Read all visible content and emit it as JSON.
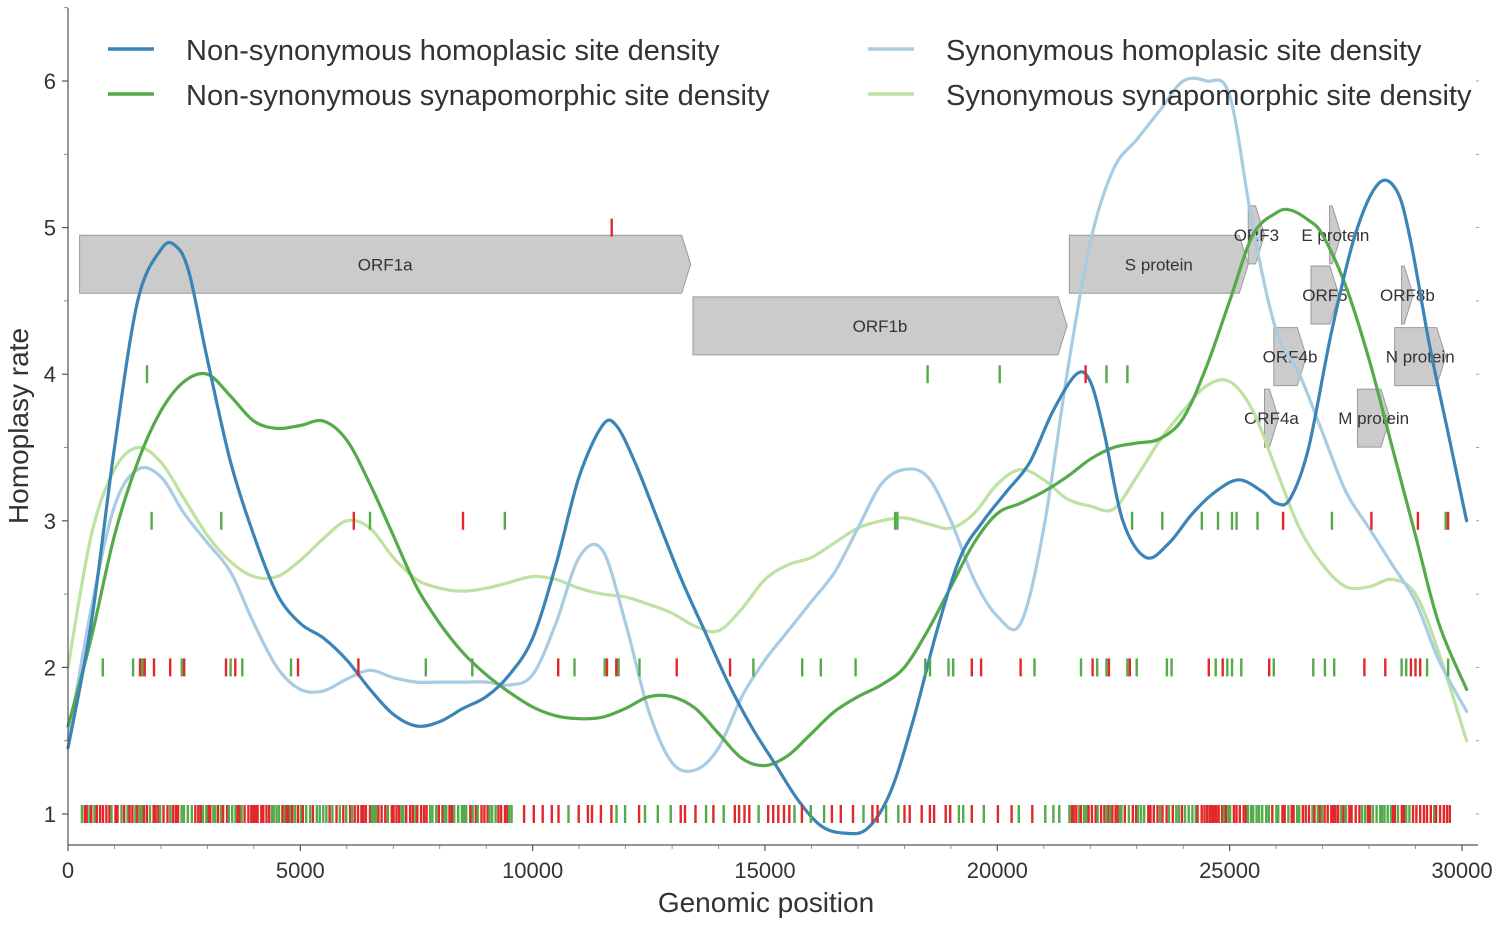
{
  "chart_data": {
    "type": "line",
    "xlabel": "Genomic position",
    "ylabel": "Homoplasy rate",
    "xlim": [
      0,
      30100
    ],
    "ylim": [
      0.8,
      6.5
    ],
    "xticks": [
      0,
      5000,
      10000,
      15000,
      20000,
      25000,
      30000
    ],
    "xtick_labels": [
      "0",
      "5000",
      "10000",
      "15000",
      "20000",
      "25000",
      "30000"
    ],
    "yticks": [
      1,
      2,
      3,
      4,
      5,
      6
    ],
    "ytick_labels": [
      "1",
      "2",
      "3",
      "4",
      "5",
      "6"
    ],
    "series": [
      {
        "name": "Non-synonymous homoplasic site density",
        "color": "#3b84b6",
        "x": [
          0,
          500,
          1000,
          1500,
          2000,
          2300,
          2600,
          3000,
          3500,
          4000,
          4500,
          5000,
          5500,
          6000,
          6500,
          7000,
          7500,
          8000,
          8500,
          9000,
          9500,
          10000,
          10500,
          11000,
          11500,
          11800,
          12200,
          12700,
          13200,
          13700,
          14200,
          14700,
          15200,
          15700,
          16200,
          16700,
          17200,
          17700,
          18200,
          18700,
          19200,
          19700,
          20200,
          20700,
          21200,
          21700,
          22000,
          22300,
          22700,
          23200,
          23700,
          24200,
          24700,
          25200,
          25700,
          26000,
          26300,
          26700,
          27200,
          27700,
          28200,
          28600,
          28900,
          29300,
          29700,
          30100
        ],
        "y": [
          1.45,
          2.3,
          3.5,
          4.5,
          4.85,
          4.88,
          4.7,
          4.1,
          3.4,
          2.9,
          2.5,
          2.3,
          2.2,
          2.05,
          1.85,
          1.68,
          1.6,
          1.63,
          1.72,
          1.8,
          1.95,
          2.2,
          2.7,
          3.3,
          3.65,
          3.65,
          3.4,
          3.0,
          2.6,
          2.25,
          1.9,
          1.6,
          1.35,
          1.1,
          0.92,
          0.87,
          0.9,
          1.15,
          1.65,
          2.25,
          2.75,
          3.0,
          3.2,
          3.4,
          3.75,
          4.0,
          3.95,
          3.6,
          3.0,
          2.75,
          2.85,
          3.05,
          3.2,
          3.28,
          3.2,
          3.12,
          3.15,
          3.5,
          4.3,
          4.95,
          5.3,
          5.25,
          4.9,
          4.2,
          3.6,
          3.0
        ]
      },
      {
        "name": "Non-synonymous synapomorphic site density",
        "color": "#55aa4a",
        "x": [
          0,
          500,
          1000,
          1500,
          2000,
          2500,
          3000,
          3500,
          4000,
          4500,
          5000,
          5500,
          6000,
          6500,
          7000,
          7500,
          8000,
          8500,
          9000,
          9500,
          10000,
          10500,
          11000,
          11500,
          12000,
          12500,
          13000,
          13500,
          14000,
          14500,
          15000,
          15500,
          16000,
          16500,
          17000,
          17500,
          18000,
          18500,
          19000,
          19500,
          20000,
          20500,
          21000,
          21500,
          22000,
          22500,
          23000,
          23500,
          24000,
          24500,
          25000,
          25500,
          26000,
          26300,
          26700,
          27000,
          27500,
          28000,
          28500,
          29000,
          29500,
          30100
        ],
        "y": [
          1.6,
          2.2,
          2.9,
          3.4,
          3.75,
          3.95,
          4.0,
          3.85,
          3.68,
          3.63,
          3.65,
          3.68,
          3.55,
          3.25,
          2.9,
          2.55,
          2.3,
          2.1,
          1.95,
          1.83,
          1.73,
          1.67,
          1.65,
          1.66,
          1.72,
          1.8,
          1.8,
          1.72,
          1.55,
          1.38,
          1.33,
          1.4,
          1.55,
          1.7,
          1.8,
          1.88,
          2.0,
          2.25,
          2.55,
          2.85,
          3.05,
          3.12,
          3.2,
          3.3,
          3.42,
          3.5,
          3.53,
          3.56,
          3.7,
          4.05,
          4.5,
          4.95,
          5.1,
          5.12,
          5.05,
          4.95,
          4.6,
          4.1,
          3.5,
          2.9,
          2.3,
          1.85
        ]
      },
      {
        "name": "Synonymous homoplasic site density",
        "color": "#a9cce3",
        "x": [
          0,
          500,
          1000,
          1500,
          2000,
          2500,
          3000,
          3500,
          4000,
          4500,
          5000,
          5500,
          6000,
          6500,
          7000,
          7500,
          8000,
          8500,
          9000,
          9500,
          10000,
          10500,
          11000,
          11500,
          12000,
          12500,
          13000,
          13500,
          14000,
          14500,
          15000,
          15500,
          16000,
          16500,
          17000,
          17500,
          18000,
          18500,
          19000,
          19500,
          20000,
          20500,
          21000,
          21500,
          22000,
          22500,
          23000,
          23500,
          24000,
          24500,
          25000,
          25500,
          26000,
          26500,
          27000,
          27500,
          28000,
          28500,
          29000,
          29500,
          30100
        ],
        "y": [
          1.5,
          2.4,
          3.1,
          3.35,
          3.3,
          3.05,
          2.85,
          2.65,
          2.3,
          2.0,
          1.85,
          1.84,
          1.92,
          1.98,
          1.93,
          1.9,
          1.9,
          1.9,
          1.9,
          1.88,
          1.95,
          2.3,
          2.75,
          2.8,
          2.3,
          1.7,
          1.35,
          1.3,
          1.45,
          1.8,
          2.05,
          2.25,
          2.45,
          2.65,
          2.95,
          3.25,
          3.35,
          3.3,
          3.0,
          2.6,
          2.35,
          2.3,
          2.95,
          4.0,
          4.9,
          5.4,
          5.6,
          5.8,
          6.0,
          6.0,
          5.9,
          5.0,
          4.3,
          4.0,
          3.6,
          3.2,
          2.95,
          2.7,
          2.45,
          2.05,
          1.7
        ]
      },
      {
        "name": "Synonymous synapomorphic site density",
        "color": "#bde2a1",
        "x": [
          0,
          500,
          1000,
          1500,
          2000,
          2500,
          3000,
          3500,
          4000,
          4500,
          5000,
          5500,
          6000,
          6500,
          7000,
          7500,
          8000,
          8500,
          9000,
          9500,
          10000,
          10500,
          11000,
          11500,
          12000,
          12500,
          13000,
          13500,
          14000,
          14500,
          15000,
          15500,
          16000,
          16500,
          17000,
          17500,
          18000,
          18500,
          19000,
          19500,
          20000,
          20500,
          21000,
          21500,
          22000,
          22500,
          23000,
          23500,
          24000,
          24500,
          25000,
          25500,
          26000,
          26500,
          27000,
          27500,
          28000,
          28500,
          29000,
          29500,
          30100
        ],
        "y": [
          2.0,
          2.9,
          3.35,
          3.5,
          3.4,
          3.15,
          2.9,
          2.72,
          2.62,
          2.62,
          2.73,
          2.88,
          3.0,
          2.95,
          2.75,
          2.6,
          2.54,
          2.52,
          2.54,
          2.58,
          2.62,
          2.6,
          2.54,
          2.5,
          2.48,
          2.43,
          2.37,
          2.28,
          2.25,
          2.4,
          2.6,
          2.7,
          2.75,
          2.85,
          2.95,
          3.0,
          3.02,
          2.98,
          2.95,
          3.05,
          3.25,
          3.35,
          3.28,
          3.15,
          3.1,
          3.08,
          3.3,
          3.55,
          3.75,
          3.92,
          3.95,
          3.75,
          3.35,
          2.95,
          2.7,
          2.55,
          2.55,
          2.6,
          2.5,
          2.1,
          1.5
        ]
      }
    ],
    "legend": {
      "position": "top",
      "entries": [
        {
          "label": "Non-synonymous homoplasic site density",
          "color": "#3b84b6"
        },
        {
          "label": "Non-synonymous synapomorphic site density",
          "color": "#55aa4a"
        },
        {
          "label": "Synonymous homoplasic site density",
          "color": "#a9cce3"
        },
        {
          "label": "Synonymous synapomorphic site density",
          "color": "#bde2a1"
        }
      ]
    },
    "genes": [
      {
        "name": "ORF1a",
        "start": 250,
        "end": 13400,
        "row": 4.75
      },
      {
        "name": "ORF1b",
        "start": 13450,
        "end": 21500,
        "row": 4.33
      },
      {
        "name": "S protein",
        "start": 21550,
        "end": 25400,
        "row": 4.75
      },
      {
        "name": "ORF3",
        "start": 25400,
        "end": 25750,
        "row": 4.95
      },
      {
        "name": "E protein",
        "start": 27150,
        "end": 27400,
        "row": 4.95
      },
      {
        "name": "ORF5",
        "start": 26750,
        "end": 27350,
        "row": 4.54
      },
      {
        "name": "ORF8b",
        "start": 28700,
        "end": 28950,
        "row": 4.54
      },
      {
        "name": "ORF4b",
        "start": 25950,
        "end": 26650,
        "row": 4.12
      },
      {
        "name": "N protein",
        "start": 28550,
        "end": 29650,
        "row": 4.12
      },
      {
        "name": "ORF4a",
        "start": 25750,
        "end": 26050,
        "row": 3.7
      },
      {
        "name": "M protein",
        "start": 27750,
        "end": 28450,
        "row": 3.7
      }
    ],
    "site_marks": {
      "colors": {
        "non_synonymous": "#55aa4a",
        "synonymous": "#e0292b"
      },
      "level5": {
        "red": [
          11700
        ],
        "green": []
      },
      "level4": {
        "red": [
          21900
        ],
        "green": [
          1700,
          18500,
          20050,
          22350,
          22800
        ]
      },
      "level3": {
        "red": [
          6150,
          8500,
          26150,
          28050,
          29050,
          29700
        ],
        "green": [
          1800,
          3300,
          6500,
          9400,
          17800,
          17850,
          22900,
          23550,
          24400,
          24750,
          25050,
          25150,
          25600,
          27200,
          29650
        ]
      },
      "level2": {
        "red": [
          1550,
          1650,
          1850,
          2200,
          2500,
          3400,
          3600,
          4950,
          6250,
          10550,
          11600,
          11800,
          13100,
          14250,
          19450,
          19650,
          20500,
          22050,
          22400,
          22850,
          24550,
          24850,
          25850,
          27900,
          28350,
          28900,
          29000,
          29100
        ],
        "green": [
          750,
          1400,
          1600,
          2450,
          3500,
          3750,
          4800,
          7700,
          8700,
          10900,
          11550,
          11850,
          12300,
          14750,
          15800,
          16200,
          16950,
          18450,
          18550,
          18950,
          19050,
          20800,
          21800,
          22150,
          22350,
          22800,
          23000,
          23650,
          23750,
          24700,
          24950,
          25050,
          25250,
          25950,
          26800,
          27050,
          27250,
          28700,
          28800,
          29250,
          29700
        ]
      },
      "level1": {
        "start": 300,
        "end": 29750,
        "density_red": 0.55
      }
    }
  }
}
